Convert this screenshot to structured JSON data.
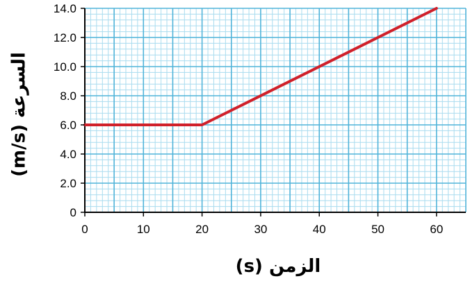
{
  "chart_data": {
    "type": "line",
    "xlabel": "الزمن (s)",
    "ylabel": "السرعة (m/s)",
    "xlim": [
      0,
      65
    ],
    "ylim": [
      0,
      14
    ],
    "x_ticks": [
      0,
      10,
      20,
      30,
      40,
      50,
      60
    ],
    "x_tick_labels": [
      "0",
      "10",
      "20",
      "30",
      "40",
      "50",
      "60"
    ],
    "y_ticks": [
      0,
      2,
      4,
      6,
      8,
      10,
      12,
      14
    ],
    "y_tick_labels": [
      "0",
      "2.0",
      "4.0",
      "6.0",
      "8.0",
      "10.0",
      "12.0",
      "14.0"
    ],
    "grid": true,
    "grid_minor_x_step": 1,
    "grid_minor_y_step": 0.4,
    "series": [
      {
        "x": [
          0,
          20,
          60
        ],
        "y": [
          6,
          6,
          14
        ],
        "color": "#d0202a"
      }
    ],
    "colors": {
      "grid_major": "#4fb3d9",
      "grid_minor": "#a9dcef",
      "axis": "#000000"
    }
  }
}
